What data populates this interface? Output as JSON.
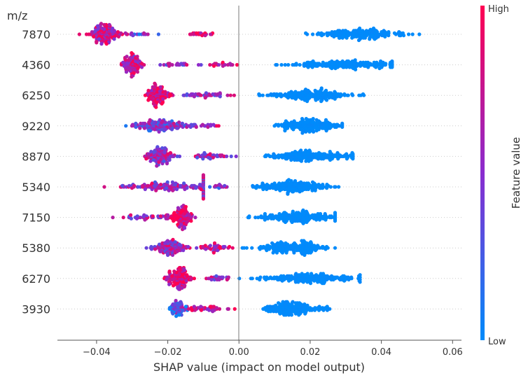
{
  "chart_data": {
    "type": "scatter",
    "subtype": "shap-beeswarm",
    "xlabel": "SHAP value (impact on model output)",
    "ylabel": "m/z",
    "xlim": [
      -0.051,
      0.0625
    ],
    "xticks": [
      -0.04,
      -0.02,
      0.0,
      0.02,
      0.04,
      0.06
    ],
    "xtick_labels": [
      "−0.04",
      "−0.02",
      "0.00",
      "0.02",
      "0.04",
      "0.06"
    ],
    "colorbar": {
      "label": "Feature value",
      "high_label": "High",
      "low_label": "Low",
      "low_color": "#008bfb",
      "mid_color": "#8a2ccf",
      "high_color": "#ff0052"
    },
    "features": [
      {
        "name": "7870",
        "clusters": [
          {
            "center": -0.038,
            "min": -0.046,
            "max": -0.03,
            "n": 150,
            "feature_value": 0.75
          },
          {
            "center": -0.028,
            "min": -0.033,
            "max": -0.022,
            "n": 14,
            "feature_value": 0.4
          },
          {
            "center": -0.011,
            "min": -0.015,
            "max": -0.006,
            "n": 20,
            "feature_value": 0.9
          },
          {
            "center": 0.035,
            "min": 0.018,
            "max": 0.055,
            "n": 190,
            "feature_value": 0.0
          }
        ]
      },
      {
        "name": "4360",
        "clusters": [
          {
            "center": -0.03,
            "min": -0.033,
            "max": -0.026,
            "n": 110,
            "feature_value": 0.75
          },
          {
            "center": -0.018,
            "min": -0.026,
            "max": -0.008,
            "n": 22,
            "feature_value": 0.55
          },
          {
            "center": -0.005,
            "min": -0.009,
            "max": 0.002,
            "n": 18,
            "feature_value": 0.85
          },
          {
            "center": 0.03,
            "min": 0.007,
            "max": 0.043,
            "n": 190,
            "feature_value": 0.0
          }
        ]
      },
      {
        "name": "6250",
        "clusters": [
          {
            "center": -0.023,
            "min": -0.028,
            "max": -0.018,
            "n": 120,
            "feature_value": 0.85
          },
          {
            "center": -0.01,
            "min": -0.018,
            "max": -0.001,
            "n": 40,
            "feature_value": 0.5
          },
          {
            "center": 0.02,
            "min": 0.005,
            "max": 0.038,
            "n": 190,
            "feature_value": 0.0
          }
        ]
      },
      {
        "name": "9220",
        "clusters": [
          {
            "center": -0.021,
            "min": -0.033,
            "max": -0.01,
            "n": 150,
            "feature_value": 0.45
          },
          {
            "center": -0.009,
            "min": -0.012,
            "max": -0.004,
            "n": 14,
            "feature_value": 0.8
          },
          {
            "center": 0.02,
            "min": 0.008,
            "max": 0.029,
            "n": 190,
            "feature_value": 0.0
          }
        ]
      },
      {
        "name": "8870",
        "clusters": [
          {
            "center": -0.022,
            "min": -0.028,
            "max": -0.016,
            "n": 120,
            "feature_value": 0.6
          },
          {
            "center": -0.008,
            "min": -0.016,
            "max": 0.0,
            "n": 40,
            "feature_value": 0.6
          },
          {
            "center": 0.02,
            "min": 0.0,
            "max": 0.032,
            "n": 190,
            "feature_value": 0.0
          }
        ]
      },
      {
        "name": "5340",
        "clusters": [
          {
            "center": -0.018,
            "min": -0.04,
            "max": -0.01,
            "n": 150,
            "feature_value": 0.6
          },
          {
            "center": -0.006,
            "min": -0.01,
            "max": -0.002,
            "n": 14,
            "feature_value": 0.5
          },
          {
            "center": 0.015,
            "min": 0.0,
            "max": 0.029,
            "n": 190,
            "feature_value": 0.0
          }
        ]
      },
      {
        "name": "7150",
        "clusters": [
          {
            "center": -0.016,
            "min": -0.02,
            "max": -0.012,
            "n": 110,
            "feature_value": 0.85
          },
          {
            "center": -0.025,
            "min": -0.036,
            "max": -0.02,
            "n": 40,
            "feature_value": 0.6
          },
          {
            "center": 0.017,
            "min": 0.0,
            "max": 0.027,
            "n": 190,
            "feature_value": 0.0
          }
        ]
      },
      {
        "name": "5380",
        "clusters": [
          {
            "center": -0.019,
            "min": -0.026,
            "max": -0.013,
            "n": 120,
            "feature_value": 0.6
          },
          {
            "center": -0.007,
            "min": -0.013,
            "max": 0.0,
            "n": 40,
            "feature_value": 0.75
          },
          {
            "center": 0.015,
            "min": 0.0,
            "max": 0.027,
            "n": 190,
            "feature_value": 0.0
          }
        ]
      },
      {
        "name": "6270",
        "clusters": [
          {
            "center": -0.017,
            "min": -0.021,
            "max": -0.012,
            "n": 130,
            "feature_value": 0.85
          },
          {
            "center": -0.006,
            "min": -0.012,
            "max": -0.002,
            "n": 25,
            "feature_value": 0.6
          },
          {
            "center": 0.02,
            "min": 0.0,
            "max": 0.034,
            "n": 190,
            "feature_value": 0.0
          }
        ]
      },
      {
        "name": "3930",
        "clusters": [
          {
            "center": -0.017,
            "min": -0.02,
            "max": -0.014,
            "n": 60,
            "feature_value": 0.3
          },
          {
            "center": -0.01,
            "min": -0.02,
            "max": 0.0,
            "n": 50,
            "feature_value": 0.8
          },
          {
            "center": 0.015,
            "min": 0.005,
            "max": 0.027,
            "n": 190,
            "feature_value": 0.0
          }
        ]
      }
    ]
  }
}
